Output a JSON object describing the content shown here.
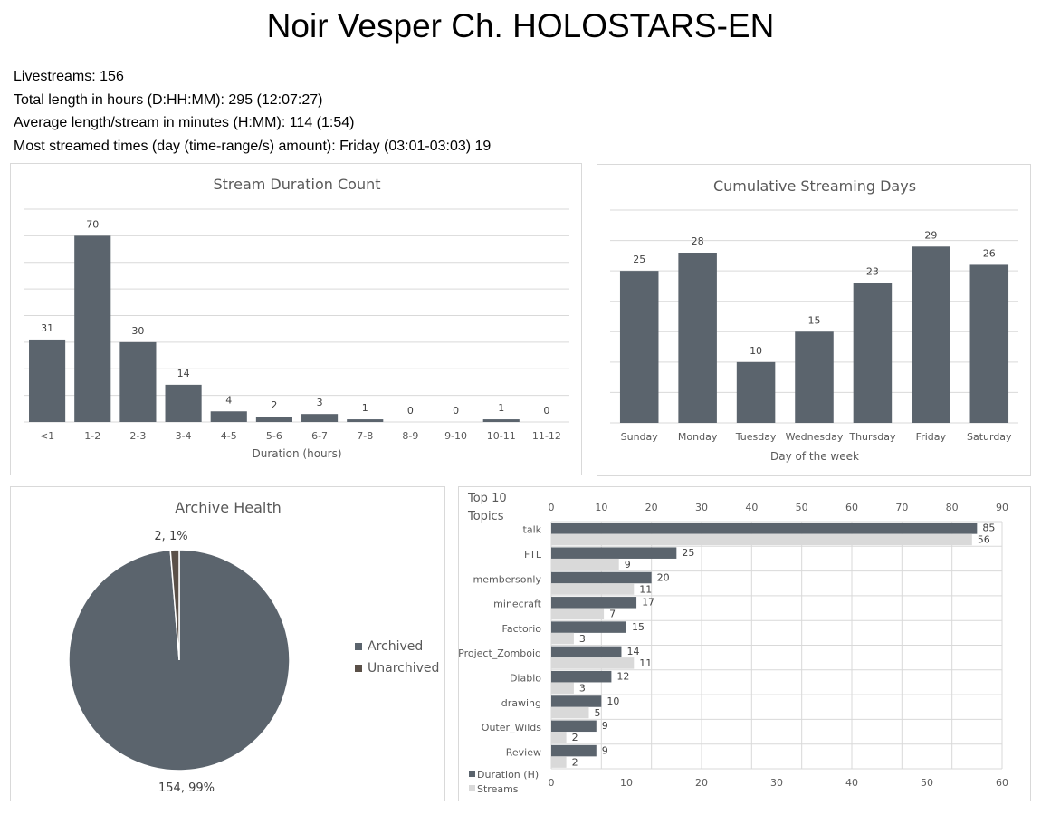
{
  "page": {
    "title": "Noir Vesper Ch. HOLOSTARS-EN"
  },
  "stats": {
    "livestreams": "Livestreams: 156",
    "total_length": "Total length in hours (D:HH:MM): 295 (12:07:27)",
    "average_length": "Average length/stream in minutes (H:MM): 114 (1:54)",
    "most_streamed": "Most streamed times (day (time-range/s) amount): Friday (03:01-03:03) 19"
  },
  "colors": {
    "bar_dark": "#5b646d",
    "bar_light": "#d9d9d9",
    "unarchived": "#5a5048",
    "grid": "#d9d9d9",
    "text": "#595959"
  },
  "chart_data": [
    {
      "id": "duration",
      "type": "bar",
      "title": "Stream Duration Count",
      "xlabel": "Duration (hours)",
      "ylabel": "",
      "categories": [
        "<1",
        "1-2",
        "2-3",
        "3-4",
        "4-5",
        "5-6",
        "6-7",
        "7-8",
        "8-9",
        "9-10",
        "10-11",
        "11-12"
      ],
      "values": [
        31,
        70,
        30,
        14,
        4,
        2,
        3,
        1,
        0,
        0,
        1,
        0
      ],
      "ylim": [
        0,
        80
      ],
      "grid": true,
      "data_labels": true
    },
    {
      "id": "days",
      "type": "bar",
      "title": "Cumulative Streaming Days",
      "xlabel": "Day of the week",
      "ylabel": "",
      "categories": [
        "Sunday",
        "Monday",
        "Tuesday",
        "Wednesday",
        "Thursday",
        "Friday",
        "Saturday"
      ],
      "values": [
        25,
        28,
        10,
        15,
        23,
        29,
        26
      ],
      "ylim": [
        0,
        35
      ],
      "grid": true,
      "data_labels": true
    },
    {
      "id": "archive",
      "type": "pie",
      "title": "Archive Health",
      "categories": [
        "Archived",
        "Unarchived"
      ],
      "values": [
        154,
        2
      ],
      "data_labels": [
        "154, 99%",
        "2, 1%"
      ],
      "legend": "right"
    },
    {
      "id": "topics",
      "type": "bar",
      "orientation": "horizontal",
      "title": "Top 10 Topics",
      "categories": [
        "talk",
        "FTL",
        "membersonly",
        "minecraft",
        "Factorio",
        "Project_Zomboid",
        "Diablo",
        "drawing",
        "Outer_Wilds",
        "Review"
      ],
      "series": [
        {
          "name": "Duration (H)",
          "values": [
            85,
            25,
            20,
            17,
            15,
            14,
            12,
            10,
            9,
            9
          ],
          "axis": "top",
          "xlim": [
            0,
            90
          ]
        },
        {
          "name": "Streams",
          "values": [
            56,
            9,
            11,
            7,
            3,
            11,
            3,
            5,
            2,
            2
          ],
          "axis": "bottom",
          "xlim": [
            0,
            60
          ]
        }
      ],
      "top_ticks": [
        "0",
        "10",
        "20",
        "30",
        "40",
        "50",
        "60",
        "70",
        "80",
        "90"
      ],
      "bottom_ticks": [
        "0",
        "10",
        "20",
        "30",
        "40",
        "50",
        "60"
      ],
      "legend": "bottom-left",
      "grid": true
    }
  ]
}
